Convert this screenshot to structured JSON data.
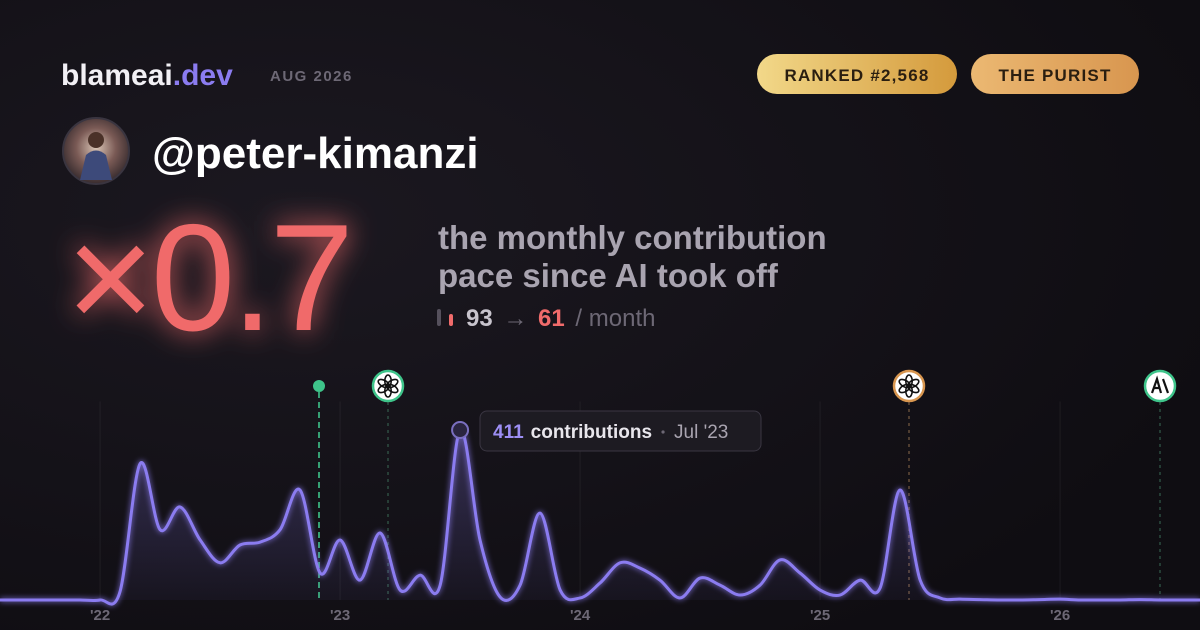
{
  "brand": {
    "name": "blameai",
    "tld": ".dev"
  },
  "period": "AUG 2026",
  "badges": [
    "RANKED #2,568",
    "THE PURIST"
  ],
  "handle": "@peter-kimanzi",
  "multiplier": "×0.7",
  "headline": [
    "the monthly contribution",
    "pace since AI took off"
  ],
  "pace": {
    "before": 93,
    "arrow": "→",
    "after": 61,
    "unit": "/ month"
  },
  "chart_data": {
    "type": "area",
    "color": "#8b7cf0",
    "x": [
      2021.583,
      2021.667,
      2021.75,
      2021.833,
      2021.917,
      2022,
      2022.083,
      2022.167,
      2022.25,
      2022.333,
      2022.417,
      2022.5,
      2022.583,
      2022.667,
      2022.75,
      2022.833,
      2022.917,
      2023,
      2023.083,
      2023.167,
      2023.25,
      2023.333,
      2023.417,
      2023.5,
      2023.583,
      2023.667,
      2023.75,
      2023.833,
      2023.917,
      2024,
      2024.083,
      2024.167,
      2024.25,
      2024.333,
      2024.417,
      2024.5,
      2024.583,
      2024.667,
      2024.75,
      2024.833,
      2024.917,
      2025,
      2025.083,
      2025.167,
      2025.25,
      2025.333,
      2025.417,
      2025.5,
      2025.583,
      2025.667,
      2025.75,
      2025.833,
      2025.917,
      2026,
      2026.083,
      2026.167,
      2026.25,
      2026.333,
      2026.417,
      2026.5,
      2026.583
    ],
    "values": [
      0,
      0,
      0,
      0,
      0,
      0,
      20,
      330,
      170,
      225,
      145,
      90,
      133,
      140,
      170,
      266,
      65,
      145,
      48,
      162,
      24,
      60,
      36,
      411,
      145,
      7,
      36,
      210,
      24,
      5,
      41,
      90,
      77,
      48,
      5,
      53,
      36,
      12,
      36,
      97,
      65,
      24,
      12,
      48,
      29,
      266,
      48,
      5,
      2,
      1,
      0,
      0,
      1,
      2,
      0,
      0,
      0,
      1,
      0,
      0,
      0
    ],
    "xlim": [
      2021.583,
      2026.583
    ],
    "ylim": [
      0,
      480
    ],
    "xticks": [
      {
        "value": 2022,
        "label": "'22"
      },
      {
        "value": 2023,
        "label": "'23"
      },
      {
        "value": 2024,
        "label": "'24"
      },
      {
        "value": 2025,
        "label": "'25"
      },
      {
        "value": 2026,
        "label": "'26"
      }
    ],
    "grid": true,
    "annotation": {
      "value": 411,
      "label": "contributions",
      "date": "Jul '23"
    }
  }
}
